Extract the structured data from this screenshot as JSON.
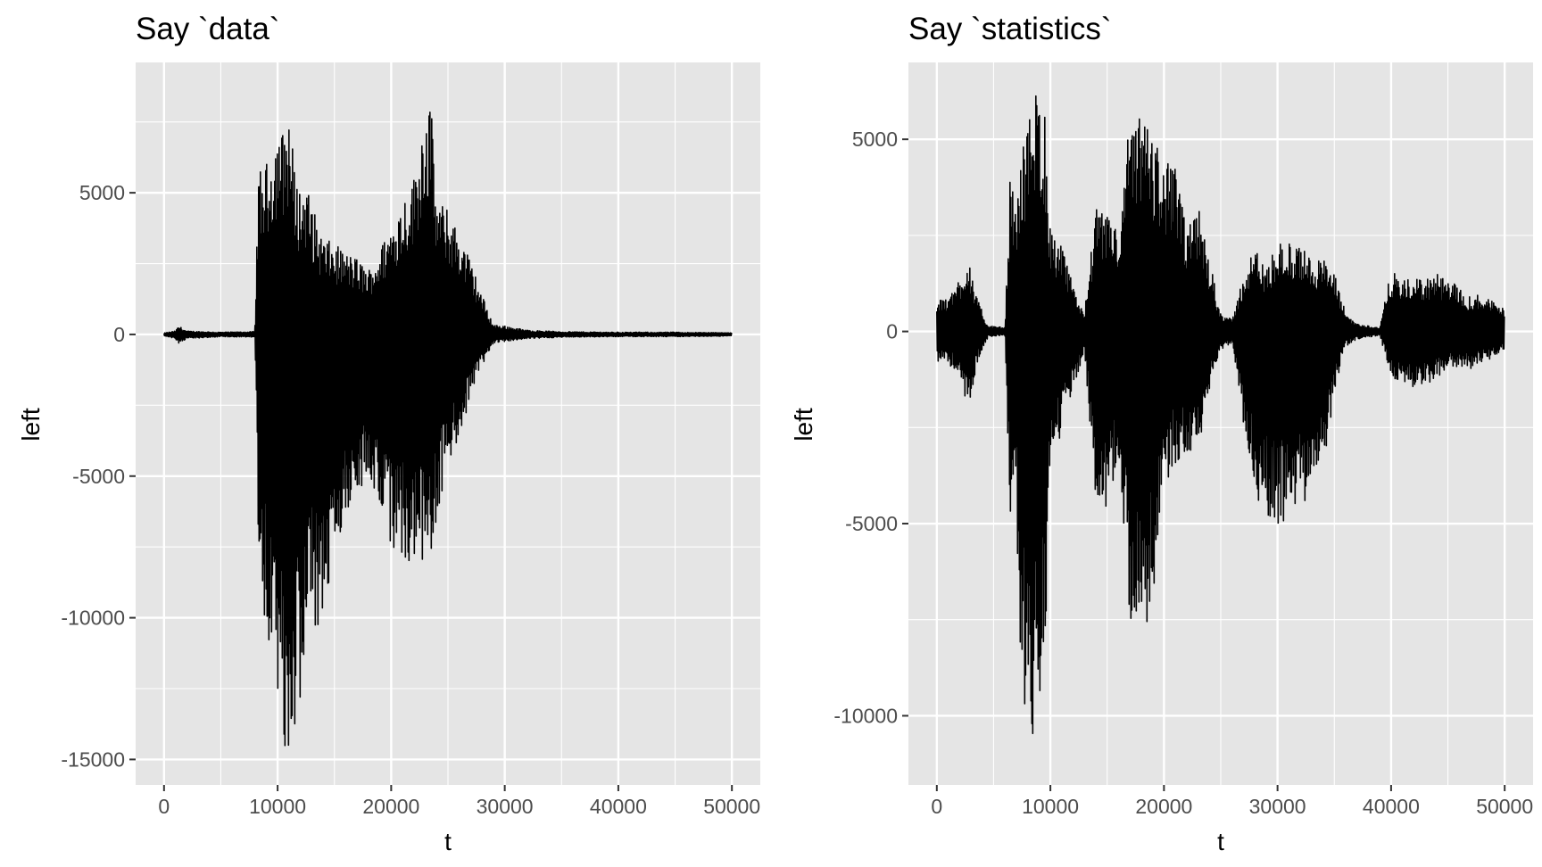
{
  "chart_data": [
    {
      "type": "line",
      "title": "Say `data`",
      "xlabel": "t",
      "ylabel": "left",
      "xlim": [
        -2500,
        52500
      ],
      "ylim": [
        -15900,
        9600
      ],
      "x_ticks": [
        0,
        10000,
        20000,
        30000,
        40000,
        50000
      ],
      "x_tick_labels": [
        "0",
        "10000",
        "20000",
        "30000",
        "40000",
        "50000"
      ],
      "y_ticks": [
        5000,
        0,
        -5000,
        -10000,
        -15000
      ],
      "y_tick_labels": [
        "5000",
        "0",
        "-5000",
        "-10000",
        "-15000"
      ],
      "grid": true,
      "background": "#e5e5e5",
      "line_color": "#000000",
      "series": [
        {
          "envelope": {
            "t": [
              0,
              1000,
              1300,
              2000,
              5000,
              8000,
              8300,
              9000,
              9500,
              10000,
              10500,
              11000,
              11500,
              12000,
              12500,
              13000,
              14000,
              15000,
              16000,
              17000,
              18000,
              19000,
              20000,
              21000,
              22000,
              22500,
              23000,
              23500,
              24000,
              25000,
              26000,
              27000,
              28000,
              29000,
              30000,
              32000,
              35000,
              40000,
              45000,
              50000
            ],
            "upper": [
              50,
              120,
              300,
              120,
              80,
              100,
              5700,
              6000,
              6700,
              7400,
              7200,
              8100,
              5800,
              5100,
              5400,
              4600,
              3400,
              3200,
              2900,
              2700,
              2300,
              3000,
              3900,
              4800,
              5600,
              6800,
              8400,
              8200,
              4800,
              4400,
              3600,
              2600,
              1400,
              350,
              300,
              150,
              100,
              80,
              80,
              60
            ],
            "lower": [
              -50,
              -150,
              -350,
              -150,
              -80,
              -100,
              -7000,
              -10800,
              -12500,
              -14800,
              -14500,
              -15400,
              -14000,
              -13000,
              -12400,
              -11000,
              -10400,
              -8000,
              -6200,
              -5900,
              -4700,
              -7200,
              -7900,
              -8000,
              -8100,
              -7000,
              -9500,
              -8500,
              -6500,
              -4600,
              -3900,
              -2200,
              -1100,
              -300,
              -250,
              -150,
              -100,
              -80,
              -80,
              -60
            ]
          }
        }
      ]
    },
    {
      "type": "line",
      "title": "Say `statistics`",
      "xlabel": "t",
      "ylabel": "left",
      "xlim": [
        -2500,
        52500
      ],
      "ylim": [
        -11800,
        7000
      ],
      "x_ticks": [
        0,
        10000,
        20000,
        30000,
        40000,
        50000
      ],
      "x_tick_labels": [
        "0",
        "10000",
        "20000",
        "30000",
        "40000",
        "50000"
      ],
      "y_ticks": [
        5000,
        0,
        -5000,
        -10000
      ],
      "y_tick_labels": [
        "5000",
        "0",
        "-5000",
        "-10000"
      ],
      "grid": true,
      "background": "#e5e5e5",
      "line_color": "#000000",
      "series": [
        {
          "envelope": {
            "t": [
              0,
              1000,
              2000,
              2800,
              3500,
              4500,
              6000,
              6500,
              7000,
              7500,
              8000,
              8500,
              9000,
              9500,
              10000,
              11000,
              12000,
              13000,
              14000,
              15000,
              15500,
              16000,
              17000,
              17500,
              18000,
              19000,
              20000,
              21000,
              22000,
              23000,
              24000,
              25000,
              26000,
              27000,
              28000,
              29000,
              30000,
              31000,
              32000,
              33000,
              34000,
              35000,
              36000,
              37000,
              38000,
              39000,
              40000,
              41000,
              42000,
              43000,
              44000,
              45000,
              46000,
              47000,
              48000,
              49000,
              50000
            ],
            "upper": [
              800,
              900,
              1400,
              2000,
              900,
              150,
              100,
              4400,
              3000,
              5000,
              5200,
              6600,
              6200,
              5700,
              2700,
              2200,
              1200,
              500,
              3200,
              3000,
              3300,
              2100,
              5700,
              5300,
              5800,
              5200,
              4500,
              4300,
              2600,
              3300,
              1900,
              500,
              300,
              1500,
              2200,
              1600,
              2400,
              2300,
              2200,
              2000,
              1900,
              1500,
              500,
              200,
              150,
              100,
              1600,
              1300,
              1400,
              1400,
              1500,
              1300,
              1200,
              900,
              1000,
              800,
              600
            ],
            "lower": [
              -800,
              -900,
              -1100,
              -2200,
              -900,
              -150,
              -100,
              -5600,
              -4800,
              -9800,
              -10200,
              -11000,
              -9500,
              -8800,
              -3300,
              -2700,
              -1500,
              -500,
              -4400,
              -4800,
              -4000,
              -3300,
              -7500,
              -7700,
              -8200,
              -7200,
              -4200,
              -3500,
              -3100,
              -3200,
              -1500,
              -500,
              -300,
              -2400,
              -4400,
              -4800,
              -5300,
              -4600,
              -4700,
              -4500,
              -3800,
              -1600,
              -400,
              -200,
              -150,
              -100,
              -1200,
              -1300,
              -1500,
              -1400,
              -1200,
              -1000,
              -900,
              -1000,
              -800,
              -700,
              -500
            ]
          }
        }
      ]
    }
  ]
}
